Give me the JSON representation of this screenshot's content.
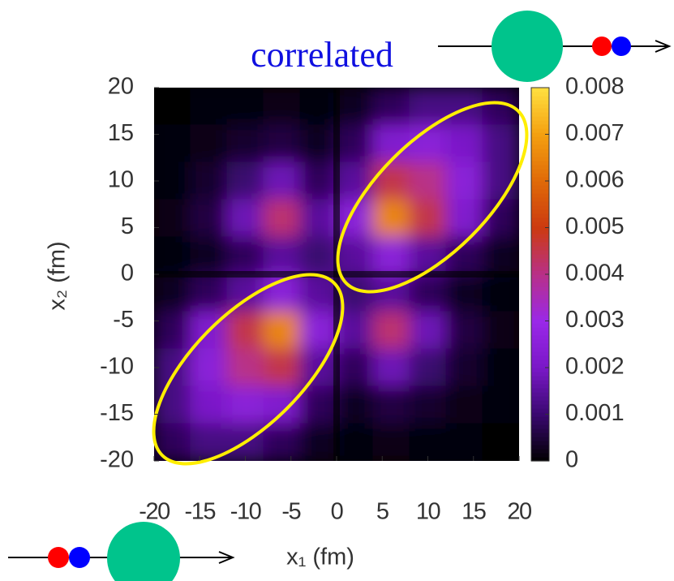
{
  "chart_data": {
    "type": "heatmap",
    "title": "correlated",
    "x_label": "x₁  (fm)",
    "y_label": "x₂  (fm)",
    "x": [
      -18,
      -14,
      -10,
      -6,
      -2,
      2,
      6,
      10,
      14,
      18
    ],
    "y": [
      18,
      14,
      10,
      6,
      2,
      -2,
      -6,
      -10,
      -14,
      -18
    ],
    "z": [
      [
        0,
        0.0001,
        0.0001,
        0.0002,
        0.0001,
        0.0003,
        0.0008,
        0.0012,
        0.0012,
        0.0008
      ],
      [
        0.0001,
        0.0002,
        0.0004,
        0.0006,
        0.0003,
        0.0008,
        0.0022,
        0.0025,
        0.002,
        0.0012
      ],
      [
        0.0001,
        0.0004,
        0.001,
        0.0018,
        0.0008,
        0.0015,
        0.0045,
        0.004,
        0.0025,
        0.0012
      ],
      [
        0.0002,
        0.0006,
        0.0018,
        0.0042,
        0.0015,
        0.0025,
        0.0065,
        0.0045,
        0.0022,
        0.0008
      ],
      [
        0.0001,
        0.0003,
        0.0008,
        0.0015,
        0.001,
        0.0015,
        0.0025,
        0.0015,
        0.0008,
        0.0003
      ],
      [
        0.0003,
        0.0008,
        0.0015,
        0.0025,
        0.0015,
        0.001,
        0.0015,
        0.0008,
        0.0003,
        0.0001
      ],
      [
        0.0008,
        0.0022,
        0.0045,
        0.0065,
        0.0025,
        0.0015,
        0.0042,
        0.0018,
        0.0006,
        0.0002
      ],
      [
        0.0012,
        0.0025,
        0.004,
        0.0045,
        0.0015,
        0.0008,
        0.0018,
        0.001,
        0.0004,
        0.0001
      ],
      [
        0.0012,
        0.002,
        0.0025,
        0.0022,
        0.0008,
        0.0003,
        0.0006,
        0.0004,
        0.0002,
        0.0001
      ],
      [
        0.0008,
        0.0012,
        0.0012,
        0.0008,
        0.0003,
        0.0001,
        0.0002,
        0.0001,
        0.0001,
        0
      ]
    ],
    "xlim": [
      -20,
      20
    ],
    "ylim": [
      -20,
      20
    ],
    "xticks": [
      -20,
      -15,
      -10,
      -5,
      0,
      5,
      10,
      15,
      20
    ],
    "yticks": [
      -20,
      -15,
      -10,
      -5,
      0,
      5,
      10,
      15,
      20
    ],
    "zlim": [
      0,
      0.008
    ],
    "zticks": [
      0,
      0.001,
      0.002,
      0.003,
      0.004,
      0.005,
      0.006,
      0.007,
      0.008
    ],
    "colormap": [
      "#000000",
      "#3a0870",
      "#7a18c8",
      "#9a28e8",
      "#b83088",
      "#cc3a10",
      "#e06a08",
      "#f4a010",
      "#ffe040"
    ]
  }
}
